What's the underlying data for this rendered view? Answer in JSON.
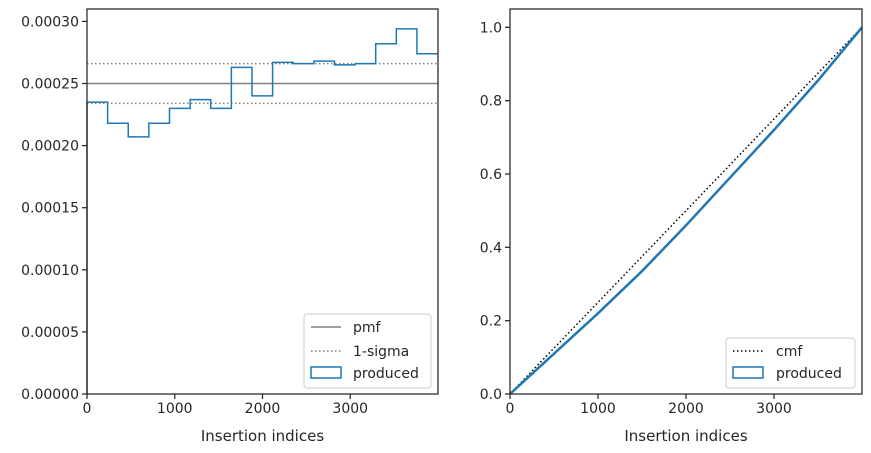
{
  "chart_data": [
    {
      "type": "histogram",
      "xlabel": "Insertion indices",
      "ylabel": "",
      "xlim": [
        0,
        4000
      ],
      "ylim": [
        0,
        0.00031
      ],
      "xticks": [
        0,
        1000,
        2000,
        3000
      ],
      "xtick_labels": [
        "0",
        "1000",
        "2000",
        "3000"
      ],
      "yticks": [
        0,
        5e-05,
        0.0001,
        0.00015,
        0.0002,
        0.00025,
        0.0003
      ],
      "ytick_labels": [
        "0.00000",
        "0.00005",
        "0.00010",
        "0.00015",
        "0.00020",
        "0.00025",
        "0.00030"
      ],
      "grid": false,
      "legend_position": "lower-right",
      "reference_lines": [
        {
          "name": "pmf",
          "style": "solid",
          "color": "#808080",
          "y": 0.00025
        },
        {
          "name": "1-sigma",
          "style": "dotted",
          "color": "#808080",
          "y": [
            0.000234,
            0.000266
          ]
        }
      ],
      "series": [
        {
          "name": "produced",
          "color": "#1f77b4",
          "bin_edges": [
            0,
            235,
            470,
            705,
            940,
            1175,
            1410,
            1645,
            1880,
            2115,
            2350,
            2585,
            2820,
            3055,
            3290,
            3525,
            3760,
            4000
          ],
          "values": [
            0.000235,
            0.000218,
            0.000207,
            0.000218,
            0.00023,
            0.000237,
            0.00023,
            0.000263,
            0.00024,
            0.000267,
            0.000266,
            0.000268,
            0.000265,
            0.000266,
            0.000282,
            0.000294,
            0.000274
          ]
        }
      ],
      "legend": [
        "pmf",
        "1-sigma",
        "produced"
      ]
    },
    {
      "type": "line",
      "xlabel": "Insertion indices",
      "ylabel": "",
      "xlim": [
        0,
        4000
      ],
      "ylim": [
        0,
        1.05
      ],
      "xticks": [
        0,
        1000,
        2000,
        3000
      ],
      "xtick_labels": [
        "0",
        "1000",
        "2000",
        "3000"
      ],
      "yticks": [
        0,
        0.2,
        0.4,
        0.6,
        0.8,
        1.0
      ],
      "ytick_labels": [
        "0.0",
        "0.2",
        "0.4",
        "0.6",
        "0.8",
        "1.0"
      ],
      "grid": false,
      "legend_position": "lower-right",
      "series": [
        {
          "name": "cmf",
          "style": "dotted",
          "color": "#000000",
          "x": [
            0,
            4000
          ],
          "y": [
            0,
            1.0
          ]
        },
        {
          "name": "produced",
          "style": "solid",
          "color": "#1f77b4",
          "x": [
            0,
            500,
            1000,
            1500,
            2000,
            2500,
            3000,
            3500,
            4000
          ],
          "y": [
            0,
            0.11,
            0.22,
            0.335,
            0.46,
            0.59,
            0.72,
            0.855,
            1.0
          ]
        }
      ],
      "legend": [
        "cmf",
        "produced"
      ]
    }
  ]
}
